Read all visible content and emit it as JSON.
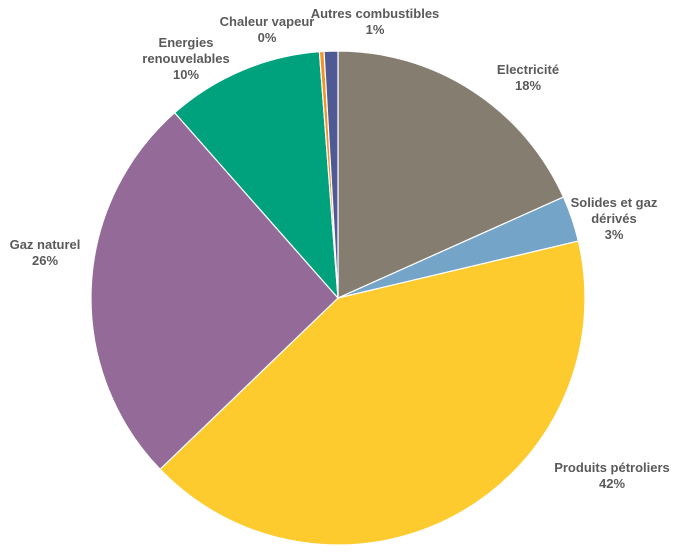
{
  "chart_data": {
    "type": "pie",
    "title": "",
    "start": "top",
    "direction": "clockwise",
    "legend": "none",
    "slices": [
      {
        "name": "Electricité",
        "value": 18.3,
        "percent_label": "18%",
        "color": "#857d70"
      },
      {
        "name": "Solides et gaz dérivés",
        "value": 3.0,
        "percent_label": "3%",
        "color": "#74a5c9"
      },
      {
        "name": "Produits pétroliers",
        "value": 41.5,
        "percent_label": "42%",
        "color": "#fdcb2e"
      },
      {
        "name": "Gaz naturel",
        "value": 25.7,
        "percent_label": "26%",
        "color": "#946b98"
      },
      {
        "name": "Energies renouvelables",
        "value": 10.3,
        "percent_label": "10%",
        "color": "#00a27e"
      },
      {
        "name": "Chaleur vapeur",
        "value": 0.3,
        "percent_label": "0%",
        "color": "#f39226"
      },
      {
        "name": "Autres combustibles",
        "value": 0.9,
        "percent_label": "1%",
        "color": "#4f5994"
      }
    ]
  }
}
